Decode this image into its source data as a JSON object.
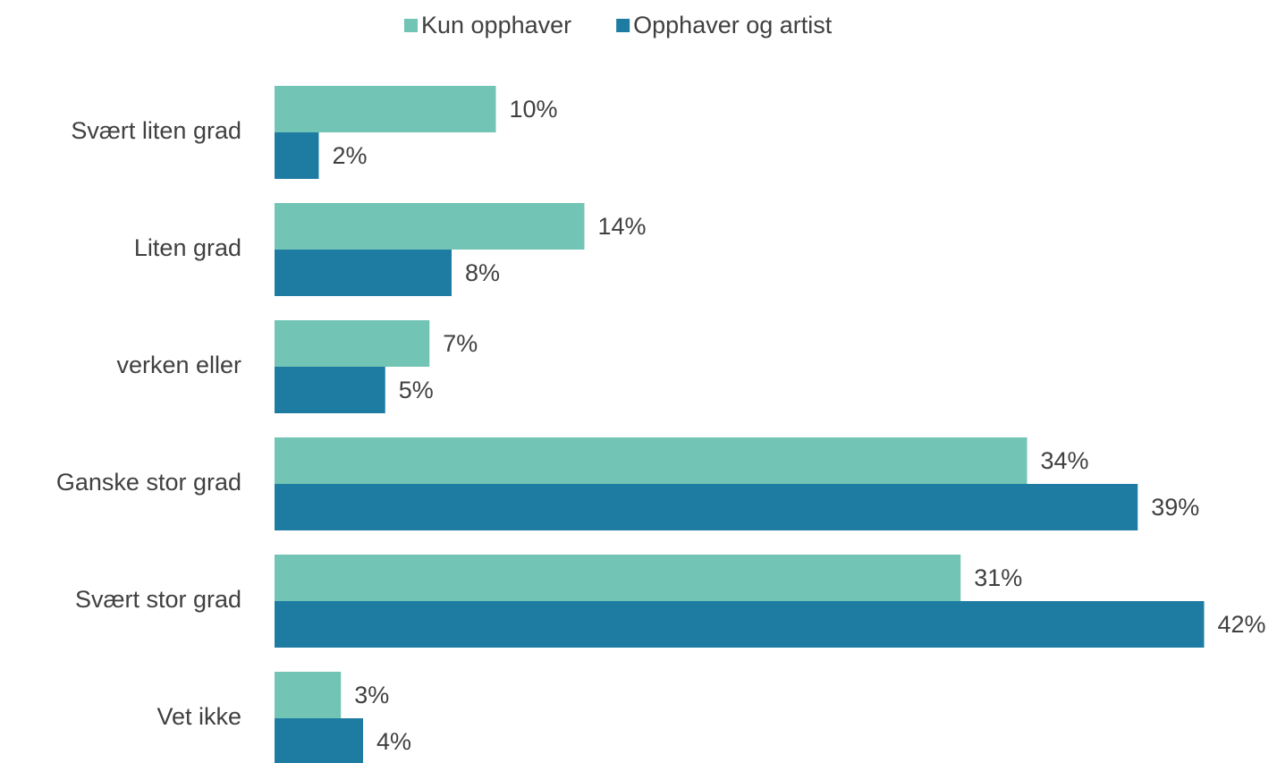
{
  "chart_data": {
    "type": "bar",
    "orientation": "horizontal",
    "categories": [
      "Svært liten grad",
      "Liten grad",
      "verken eller",
      "Ganske stor grad",
      "Svært stor grad",
      "Vet ikke"
    ],
    "series": [
      {
        "name": "Kun opphaver",
        "color": "#72c4b4",
        "values": [
          10,
          14,
          7,
          34,
          31,
          3
        ],
        "value_labels": [
          "10%",
          "14%",
          "7%",
          "34%",
          "31%",
          "3%"
        ]
      },
      {
        "name": "Opphaver og artist",
        "color": "#1e7ca3",
        "values": [
          2,
          8,
          5,
          39,
          42,
          4
        ],
        "value_labels": [
          "2%",
          "8%",
          "5%",
          "39%",
          "42%",
          "4%"
        ]
      }
    ],
    "legend": "top"
  }
}
